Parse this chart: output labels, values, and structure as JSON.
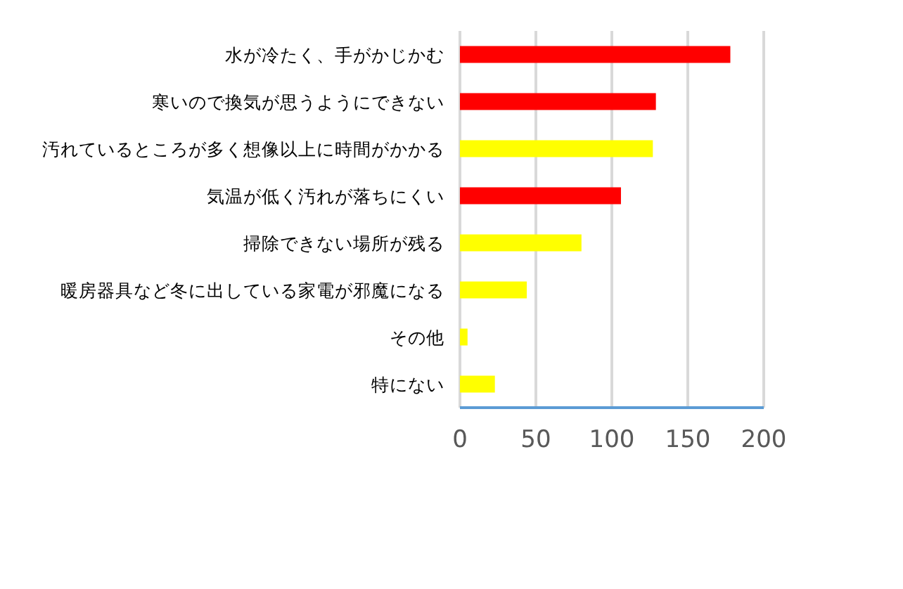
{
  "chart_data": {
    "type": "bar",
    "orientation": "horizontal",
    "categories": [
      "水が冷たく、手がかじかむ",
      "寒いので換気が思うようにできない",
      "汚れているところが多く想像以上に時間がかかる",
      "気温が低く汚れが落ちにくい",
      "掃除できない場所が残る",
      "暖房器具など冬に出している家電が邪魔になる",
      "その他",
      "特にない"
    ],
    "values": [
      178,
      129,
      127,
      106,
      80,
      44,
      5,
      23
    ],
    "colors": [
      "#ff0000",
      "#ff0000",
      "#ffff00",
      "#ff0000",
      "#ffff00",
      "#ffff00",
      "#ffff00",
      "#ffff00"
    ],
    "xlim": [
      0,
      200
    ],
    "xticks": [
      0,
      50,
      100,
      150,
      200
    ],
    "grid": "x"
  }
}
